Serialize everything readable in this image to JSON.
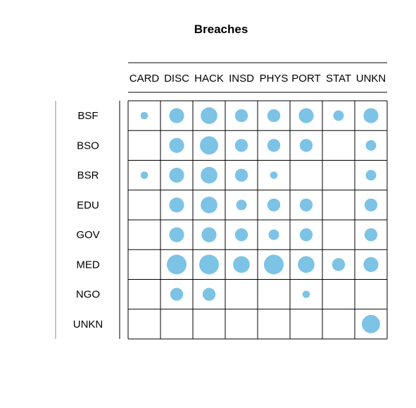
{
  "chart_data": {
    "type": "balloon",
    "title": "Breaches",
    "xlabel": "",
    "ylabel": "",
    "columns": [
      "CARD",
      "DISC",
      "HACK",
      "INSD",
      "PHYS",
      "PORT",
      "STAT",
      "UNKN"
    ],
    "rows": [
      "BSF",
      "BSO",
      "BSR",
      "EDU",
      "GOV",
      "MED",
      "NGO",
      "UNKN"
    ],
    "values": [
      [
        1,
        4,
        5,
        3,
        3,
        4,
        2,
        4
      ],
      [
        0,
        4,
        6,
        3,
        3,
        3,
        0,
        2
      ],
      [
        1,
        4,
        5,
        3,
        1,
        0,
        0,
        2
      ],
      [
        0,
        4,
        5,
        2,
        3,
        3,
        0,
        3
      ],
      [
        0,
        4,
        4,
        3,
        2,
        3,
        0,
        3
      ],
      [
        0,
        7,
        7,
        5,
        7,
        5,
        3,
        4
      ],
      [
        0,
        3,
        3,
        0,
        0,
        1,
        0,
        0
      ],
      [
        0,
        0,
        0,
        0,
        0,
        0,
        0,
        6
      ]
    ],
    "value_scale": "relative size (0 = empty cell)",
    "color": "#7cc3e6",
    "grid": true,
    "legend": "none"
  }
}
